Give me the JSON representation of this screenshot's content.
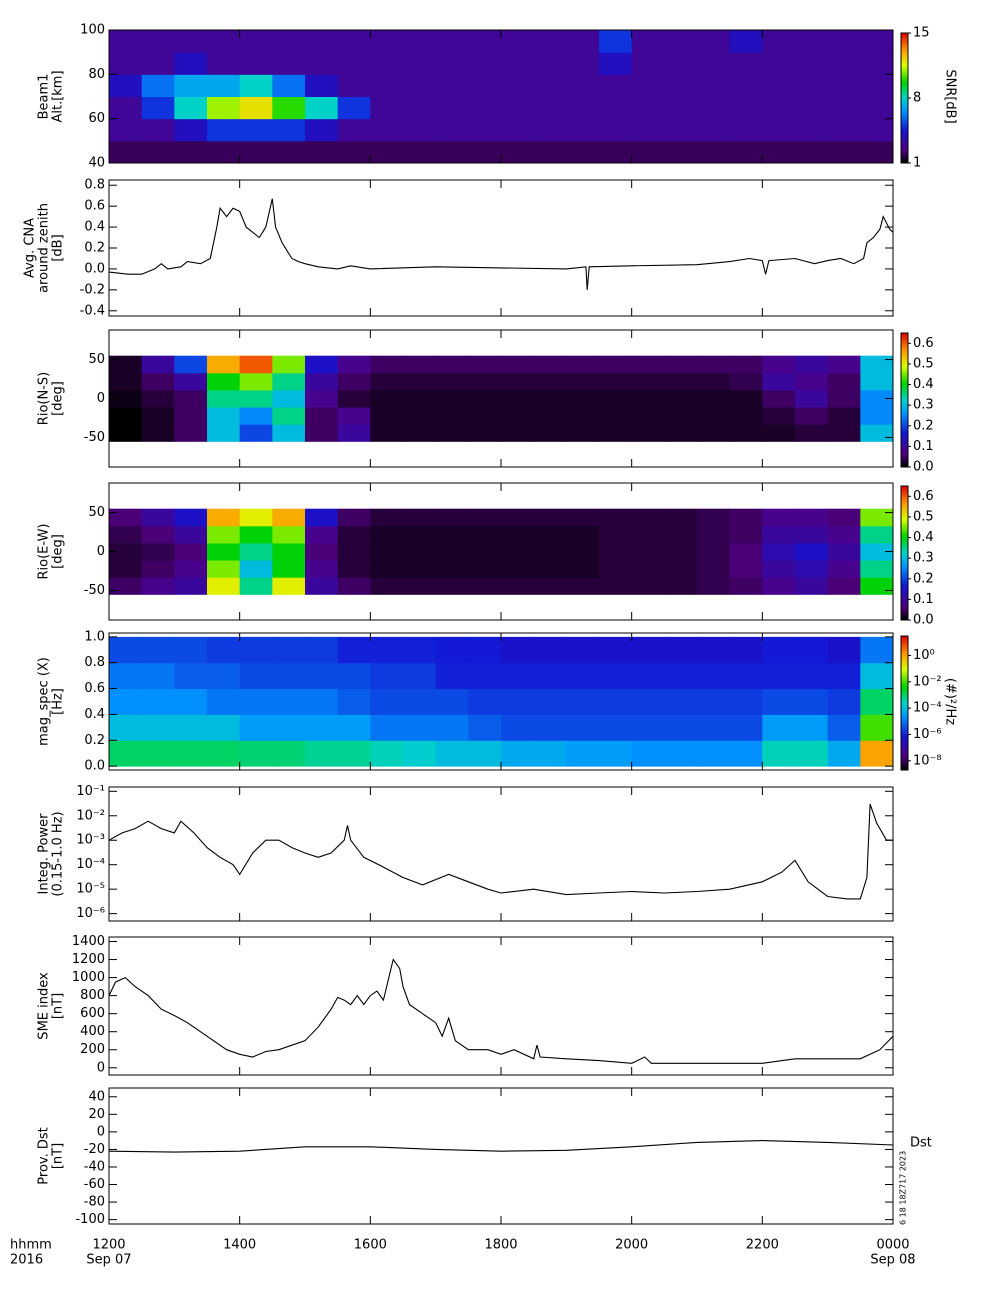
{
  "x_axis": {
    "xlim": [
      0,
      12
    ],
    "xticks": [
      {
        "value": 0,
        "label": "1200"
      },
      {
        "value": 2,
        "label": "1400"
      },
      {
        "value": 4,
        "label": "1600"
      },
      {
        "value": 6,
        "label": "1800"
      },
      {
        "value": 8,
        "label": "2000"
      },
      {
        "value": 10,
        "label": "2200"
      },
      {
        "value": 12,
        "label": "0000"
      }
    ],
    "date_labels": [
      {
        "value": 0,
        "label": "Sep 07"
      },
      {
        "value": 12,
        "label": "Sep 08"
      }
    ],
    "row_labels": [
      "hhmm",
      "2016"
    ]
  },
  "annotations": [
    "Dst",
    "6 18 18Z717 2023"
  ],
  "chart_data": [
    {
      "type": "heatmap",
      "ylabel": [
        "Beam1",
        "Alt.[km]"
      ],
      "ylim": [
        40,
        100
      ],
      "yticks": [
        40,
        60,
        80,
        100
      ],
      "x_edges": [
        0,
        0.5,
        1,
        1.5,
        2,
        2.5,
        3,
        3.5,
        4,
        4.5,
        5,
        5.5,
        6,
        6.5,
        7,
        7.5,
        8,
        8.5,
        9,
        9.5,
        10,
        10.5,
        11,
        11.5,
        12
      ],
      "y_edges": [
        40,
        50,
        60,
        70,
        80,
        90,
        100
      ],
      "z": [
        [
          2,
          2,
          2,
          2,
          2,
          2,
          2,
          2,
          2,
          2,
          2,
          2,
          2,
          2,
          2,
          2,
          2,
          2,
          2,
          2,
          2,
          2,
          2,
          2
        ],
        [
          3,
          3,
          4,
          5,
          5,
          5,
          4,
          3,
          3,
          3,
          3,
          3,
          3,
          3,
          3,
          3,
          3,
          3,
          3,
          3,
          3,
          3,
          3,
          3
        ],
        [
          3,
          5,
          8,
          11,
          12,
          10,
          8,
          5,
          3,
          3,
          3,
          3,
          3,
          3,
          3,
          3,
          3,
          3,
          3,
          3,
          3,
          3,
          3,
          3
        ],
        [
          4,
          6,
          7,
          7,
          8,
          6,
          4,
          3,
          3,
          3,
          3,
          3,
          3,
          3,
          3,
          3,
          3,
          3,
          3,
          3,
          3,
          3,
          3,
          3
        ],
        [
          3,
          3,
          4,
          3,
          3,
          3,
          3,
          3,
          3,
          3,
          3,
          3,
          3,
          3,
          3,
          4,
          3,
          3,
          3,
          3,
          3,
          3,
          3,
          3
        ],
        [
          3,
          3,
          3,
          3,
          3,
          3,
          3,
          3,
          3,
          3,
          3,
          3,
          3,
          3,
          3,
          5,
          3,
          3,
          3,
          4,
          3,
          3,
          3,
          3
        ]
      ],
      "zlim": [
        1,
        15
      ],
      "zticks": [
        1,
        8,
        15
      ],
      "zlabel": "SNR[dB]"
    },
    {
      "type": "line",
      "ylabel": [
        "Avg. CNA",
        "around zenith",
        "[dB]"
      ],
      "ylim": [
        -0.45,
        0.85
      ],
      "yticks": [
        -0.4,
        -0.2,
        {
          "value": 0,
          "label": "0.0"
        },
        0.2,
        0.4,
        0.6,
        0.8
      ],
      "x": [
        0,
        0.3,
        0.5,
        0.7,
        0.8,
        0.9,
        1.1,
        1.2,
        1.4,
        1.55,
        1.65,
        1.7,
        1.8,
        1.9,
        2.0,
        2.1,
        2.2,
        2.3,
        2.4,
        2.5,
        2.55,
        2.65,
        2.8,
        2.9,
        3.0,
        3.2,
        3.5,
        3.7,
        4.0,
        5,
        6,
        7,
        7.3,
        7.32,
        7.35,
        8,
        9,
        9.5,
        9.8,
        10.0,
        10.05,
        10.1,
        10.5,
        10.8,
        11.0,
        11.2,
        11.4,
        11.55,
        11.6,
        11.7,
        11.8,
        11.85,
        11.95,
        12
      ],
      "values": [
        -0.03,
        -0.05,
        -0.05,
        0.0,
        0.05,
        0.0,
        0.02,
        0.07,
        0.05,
        0.1,
        0.4,
        0.58,
        0.5,
        0.58,
        0.55,
        0.4,
        0.35,
        0.3,
        0.4,
        0.67,
        0.4,
        0.25,
        0.1,
        0.07,
        0.05,
        0.02,
        0.0,
        0.03,
        0.0,
        0.02,
        0.01,
        0.0,
        0.02,
        -0.2,
        0.02,
        0.03,
        0.04,
        0.07,
        0.1,
        0.08,
        -0.05,
        0.08,
        0.1,
        0.05,
        0.08,
        0.1,
        0.05,
        0.1,
        0.25,
        0.3,
        0.38,
        0.5,
        0.38,
        0.35
      ],
      "color": "#000000"
    },
    {
      "type": "heatmap",
      "ylabel": [
        "Rio(N-S)",
        "[deg]"
      ],
      "ylim": [
        -88,
        88
      ],
      "yticks": [
        -50,
        0,
        50
      ],
      "x_edges": [
        0,
        0.5,
        1,
        1.5,
        2,
        2.5,
        3,
        3.5,
        4,
        4.5,
        5,
        5.5,
        6,
        6.5,
        7,
        7.5,
        8,
        8.5,
        9,
        9.5,
        10,
        10.5,
        11,
        11.5,
        12
      ],
      "y_edges": [
        -55,
        -33,
        -11,
        11,
        33,
        55
      ],
      "z": [
        [
          0,
          0.02,
          0.05,
          0.3,
          0.2,
          0.3,
          0.05,
          0.1,
          0.02,
          0.02,
          0.02,
          0.02,
          0.02,
          0.02,
          0.02,
          0.02,
          0.02,
          0.02,
          0.02,
          0.02,
          0.02,
          0.03,
          0.03,
          0.3
        ],
        [
          0,
          0.02,
          0.05,
          0.3,
          0.25,
          0.35,
          0.05,
          0.08,
          0.02,
          0.02,
          0.02,
          0.02,
          0.02,
          0.02,
          0.02,
          0.02,
          0.02,
          0.02,
          0.02,
          0.02,
          0.03,
          0.05,
          0.03,
          0.25
        ],
        [
          0.01,
          0.03,
          0.05,
          0.35,
          0.35,
          0.3,
          0.08,
          0.03,
          0.02,
          0.02,
          0.02,
          0.02,
          0.02,
          0.02,
          0.02,
          0.02,
          0.02,
          0.02,
          0.02,
          0.02,
          0.05,
          0.1,
          0.05,
          0.25
        ],
        [
          0.02,
          0.05,
          0.1,
          0.4,
          0.45,
          0.35,
          0.1,
          0.05,
          0.03,
          0.03,
          0.03,
          0.03,
          0.03,
          0.03,
          0.03,
          0.03,
          0.03,
          0.03,
          0.03,
          0.04,
          0.1,
          0.08,
          0.05,
          0.3
        ],
        [
          0.02,
          0.1,
          0.2,
          0.55,
          0.6,
          0.45,
          0.15,
          0.08,
          0.05,
          0.05,
          0.05,
          0.05,
          0.05,
          0.05,
          0.05,
          0.05,
          0.05,
          0.05,
          0.05,
          0.05,
          0.08,
          0.1,
          0.08,
          0.3
        ]
      ],
      "zlim": [
        0,
        0.65
      ],
      "zticks": [
        {
          "value": 0,
          "label": "0.0"
        },
        0.1,
        0.2,
        0.3,
        0.4,
        0.5,
        0.6
      ]
    },
    {
      "type": "heatmap",
      "ylabel": [
        "Rio(E-W)",
        "[deg]"
      ],
      "ylim": [
        -88,
        88
      ],
      "yticks": [
        -50,
        0,
        50
      ],
      "x_edges": [
        0,
        0.5,
        1,
        1.5,
        2,
        2.5,
        3,
        3.5,
        4,
        4.5,
        5,
        5.5,
        6,
        6.5,
        7,
        7.5,
        8,
        8.5,
        9,
        9.5,
        10,
        10.5,
        11,
        11.5,
        12
      ],
      "y_edges": [
        -55,
        -33,
        -11,
        11,
        33,
        55
      ],
      "z": [
        [
          0.05,
          0.08,
          0.1,
          0.5,
          0.35,
          0.5,
          0.1,
          0.05,
          0.03,
          0.03,
          0.03,
          0.03,
          0.03,
          0.03,
          0.03,
          0.03,
          0.03,
          0.03,
          0.04,
          0.05,
          0.08,
          0.1,
          0.06,
          0.4
        ],
        [
          0.03,
          0.05,
          0.08,
          0.45,
          0.3,
          0.4,
          0.08,
          0.03,
          0.02,
          0.02,
          0.02,
          0.02,
          0.02,
          0.02,
          0.02,
          0.03,
          0.03,
          0.03,
          0.04,
          0.06,
          0.1,
          0.12,
          0.08,
          0.35
        ],
        [
          0.03,
          0.04,
          0.06,
          0.4,
          0.35,
          0.4,
          0.06,
          0.03,
          0.02,
          0.02,
          0.02,
          0.02,
          0.02,
          0.02,
          0.02,
          0.03,
          0.03,
          0.03,
          0.04,
          0.06,
          0.12,
          0.15,
          0.1,
          0.3
        ],
        [
          0.04,
          0.06,
          0.1,
          0.45,
          0.4,
          0.45,
          0.08,
          0.03,
          0.02,
          0.02,
          0.02,
          0.02,
          0.02,
          0.02,
          0.02,
          0.03,
          0.03,
          0.03,
          0.04,
          0.05,
          0.1,
          0.1,
          0.08,
          0.35
        ],
        [
          0.06,
          0.1,
          0.15,
          0.55,
          0.5,
          0.55,
          0.15,
          0.05,
          0.03,
          0.03,
          0.03,
          0.03,
          0.03,
          0.03,
          0.03,
          0.03,
          0.03,
          0.03,
          0.04,
          0.05,
          0.08,
          0.08,
          0.06,
          0.45
        ]
      ],
      "zlim": [
        0,
        0.65
      ],
      "zticks": [
        {
          "value": 0,
          "label": "0.0"
        },
        0.1,
        0.2,
        0.3,
        0.4,
        0.5,
        0.6
      ]
    },
    {
      "type": "heatmap",
      "ylabel": [
        "mag_spec (X)",
        "[Hz]"
      ],
      "ylim": [
        -0.03,
        1.03
      ],
      "yticks": [
        {
          "value": 0,
          "label": "0.0"
        },
        0.2,
        0.4,
        0.6,
        0.8,
        {
          "value": 1,
          "label": "1.0"
        }
      ],
      "x_edges": [
        0,
        0.5,
        1,
        1.5,
        2,
        2.5,
        3,
        3.5,
        4,
        4.5,
        5,
        5.5,
        6,
        6.5,
        7,
        7.5,
        8,
        8.5,
        9,
        9.5,
        10,
        10.5,
        11,
        11.5,
        12
      ],
      "y_edges": [
        0,
        0.2,
        0.4,
        0.6,
        0.8,
        1.0
      ],
      "z": [
        [
          0.001,
          0.001,
          0.001,
          0.001,
          0.0008,
          0.0008,
          0.0005,
          0.0005,
          0.0003,
          0.0002,
          0.0001,
          0.0001,
          5e-05,
          5e-05,
          3e-05,
          3e-05,
          2e-05,
          2e-05,
          2e-05,
          2e-05,
          0.0003,
          0.0003,
          5e-05,
          1
        ],
        [
          0.0001,
          0.0001,
          0.0001,
          0.0001,
          3e-05,
          3e-05,
          3e-05,
          3e-05,
          1e-05,
          1e-05,
          1e-05,
          5e-06,
          3e-06,
          3e-06,
          3e-06,
          3e-06,
          3e-06,
          3e-06,
          3e-06,
          3e-06,
          3e-05,
          3e-05,
          5e-06,
          0.01
        ],
        [
          2e-05,
          2e-05,
          2e-05,
          1e-05,
          1e-05,
          1e-05,
          1e-05,
          5e-06,
          3e-06,
          3e-06,
          3e-06,
          2e-06,
          2e-06,
          2e-06,
          2e-06,
          2e-06,
          2e-06,
          2e-06,
          2e-06,
          2e-06,
          3e-06,
          3e-06,
          2e-06,
          0.001
        ],
        [
          1e-05,
          1e-05,
          5e-06,
          5e-06,
          3e-06,
          3e-06,
          3e-06,
          3e-06,
          2e-06,
          2e-06,
          1e-06,
          1e-06,
          1e-06,
          1e-06,
          1e-06,
          1e-06,
          1e-06,
          1e-06,
          1e-06,
          1e-06,
          1e-06,
          1e-06,
          1e-06,
          0.0001
        ],
        [
          3e-06,
          3e-06,
          3e-06,
          2e-06,
          2e-06,
          2e-06,
          2e-06,
          1e-06,
          1e-06,
          1e-06,
          8e-07,
          8e-07,
          5e-07,
          5e-07,
          5e-07,
          5e-07,
          5e-07,
          5e-07,
          5e-07,
          5e-07,
          8e-07,
          8e-07,
          5e-07,
          1e-05
        ]
      ],
      "zlim": [
        2e-09,
        30
      ],
      "zlog": true,
      "zticks": [
        {
          "value": 1,
          "label": "10⁰"
        },
        {
          "value": 0.01,
          "label": "10⁻²"
        },
        {
          "value": 0.0001,
          "label": "10⁻⁴"
        },
        {
          "value": 1e-06,
          "label": "10⁻⁶"
        },
        {
          "value": 1e-08,
          "label": "10⁻⁸"
        }
      ],
      "zlabel": "(#)²/Hz"
    },
    {
      "type": "line",
      "ylabel": [
        "Integ. Power",
        "(0.15-1.0 Hz)"
      ],
      "ylim": [
        5e-07,
        0.15
      ],
      "ylog": true,
      "yticks": [
        {
          "value": 0.1,
          "label": "10⁻¹"
        },
        {
          "value": 0.01,
          "label": "10⁻²"
        },
        {
          "value": 0.001,
          "label": "10⁻³"
        },
        {
          "value": 0.0001,
          "label": "10⁻⁴"
        },
        {
          "value": 1e-05,
          "label": "10⁻⁵"
        },
        {
          "value": 1e-06,
          "label": "10⁻⁶"
        }
      ],
      "x": [
        0,
        0.2,
        0.4,
        0.6,
        0.8,
        1.0,
        1.1,
        1.3,
        1.5,
        1.7,
        1.9,
        2.0,
        2.2,
        2.4,
        2.6,
        2.8,
        3.0,
        3.2,
        3.4,
        3.6,
        3.65,
        3.7,
        3.9,
        4.2,
        4.5,
        4.8,
        5.2,
        5.5,
        5.8,
        6.0,
        6.5,
        7.0,
        7.5,
        8.0,
        8.5,
        9.0,
        9.5,
        10.0,
        10.3,
        10.5,
        10.7,
        11.0,
        11.3,
        11.5,
        11.6,
        11.65,
        11.75,
        11.9,
        12
      ],
      "values": [
        0.001,
        0.002,
        0.003,
        0.006,
        0.003,
        0.002,
        0.006,
        0.002,
        0.0005,
        0.0002,
        0.0001,
        4e-05,
        0.0003,
        0.001,
        0.001,
        0.0005,
        0.0003,
        0.0002,
        0.0003,
        0.001,
        0.004,
        0.001,
        0.0002,
        8e-05,
        3e-05,
        1.5e-05,
        4e-05,
        2e-05,
        1e-05,
        7e-06,
        1e-05,
        6e-06,
        7e-06,
        8e-06,
        7e-06,
        8e-06,
        1e-05,
        2e-05,
        5e-05,
        0.00015,
        2e-05,
        5e-06,
        4e-06,
        4e-06,
        3e-05,
        0.03,
        0.005,
        0.001,
        0.001
      ],
      "color": "#000000"
    },
    {
      "type": "line",
      "ylabel": [
        "SME index",
        "[nT]"
      ],
      "ylim": [
        -80,
        1450
      ],
      "yticks": [
        0,
        200,
        400,
        600,
        800,
        1000,
        1200,
        1400
      ],
      "x": [
        0,
        0.1,
        0.25,
        0.4,
        0.6,
        0.8,
        1.0,
        1.2,
        1.4,
        1.6,
        1.8,
        2.0,
        2.2,
        2.4,
        2.6,
        2.8,
        3.0,
        3.2,
        3.4,
        3.5,
        3.6,
        3.7,
        3.8,
        3.9,
        4.0,
        4.1,
        4.2,
        4.35,
        4.45,
        4.5,
        4.6,
        4.8,
        5.0,
        5.1,
        5.2,
        5.3,
        5.5,
        5.8,
        6.0,
        6.2,
        6.5,
        6.55,
        6.6,
        7.0,
        7.5,
        8.0,
        8.2,
        8.3,
        9.0,
        10.0,
        10.5,
        11.0,
        11.5,
        11.8,
        12
      ],
      "values": [
        800,
        950,
        1000,
        900,
        800,
        650,
        580,
        500,
        400,
        300,
        200,
        150,
        120,
        180,
        200,
        250,
        300,
        450,
        650,
        780,
        750,
        700,
        800,
        700,
        800,
        850,
        750,
        1200,
        1100,
        900,
        700,
        600,
        500,
        350,
        550,
        300,
        200,
        200,
        150,
        200,
        100,
        250,
        120,
        100,
        80,
        50,
        120,
        50,
        50,
        50,
        100,
        100,
        100,
        200,
        350
      ],
      "color": "#000000"
    },
    {
      "type": "line",
      "ylabel": [
        "Prov. Dst",
        "[nT]"
      ],
      "ylim": [
        -105,
        50
      ],
      "yticks": [
        -100,
        -80,
        -60,
        -40,
        -20,
        0,
        20,
        40
      ],
      "x": [
        0,
        1,
        2,
        3,
        4,
        5,
        6,
        7,
        8,
        9,
        10,
        11,
        12
      ],
      "values": [
        -22,
        -23,
        -22,
        -17,
        -17,
        -20,
        -22,
        -21,
        -17,
        -12,
        -10,
        -12,
        -15
      ],
      "color": "#000000"
    }
  ]
}
